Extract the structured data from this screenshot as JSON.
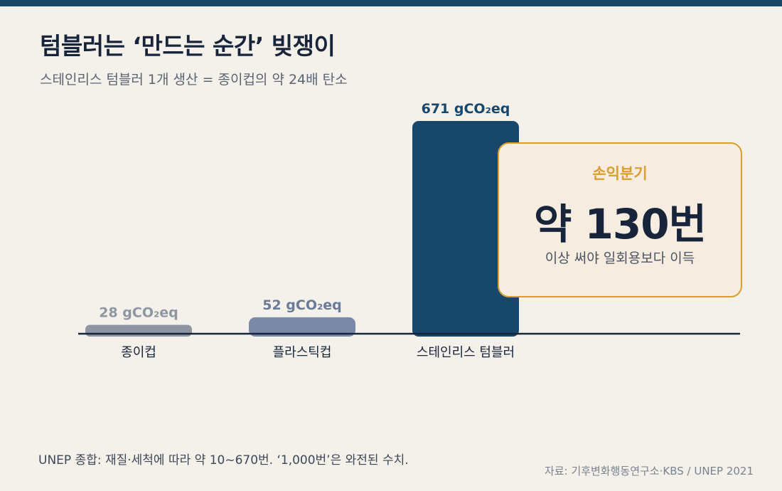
{
  "header": {
    "title": "텀블러는 ‘만드는 순간’ 빚쟁이",
    "subtitle": "스테인리스 텀블러 1개 생산 = 종이컵의 약 24배 탄소"
  },
  "chart_data": {
    "type": "bar",
    "categories": [
      "종이컵",
      "플라스틱컵",
      "스테인리스 텀블러"
    ],
    "values": [
      28,
      52,
      671
    ],
    "value_labels": [
      "28 gCO₂eq",
      "52 gCO₂eq",
      "671 gCO₂eq"
    ],
    "unit": "gCO₂eq",
    "ylim": [
      0,
      671
    ],
    "grid": false,
    "colors": [
      "#8e96a4",
      "#7a89a8",
      "#17476a"
    ],
    "label_colors": [
      "#8e96a4",
      "#6a7a99",
      "#17476a"
    ],
    "axis_color": "#17243a"
  },
  "callout": {
    "label": "손익분기",
    "value": "약 130번",
    "desc": "이상 써야 일회용보다 이득"
  },
  "footer": {
    "note": "UNEP 종합: 재질·세척에 따라 약 10~670번. ‘1,000번’은 와전된 수치.",
    "source": "자료: 기후변화행동연구소·KBS / UNEP 2021"
  }
}
